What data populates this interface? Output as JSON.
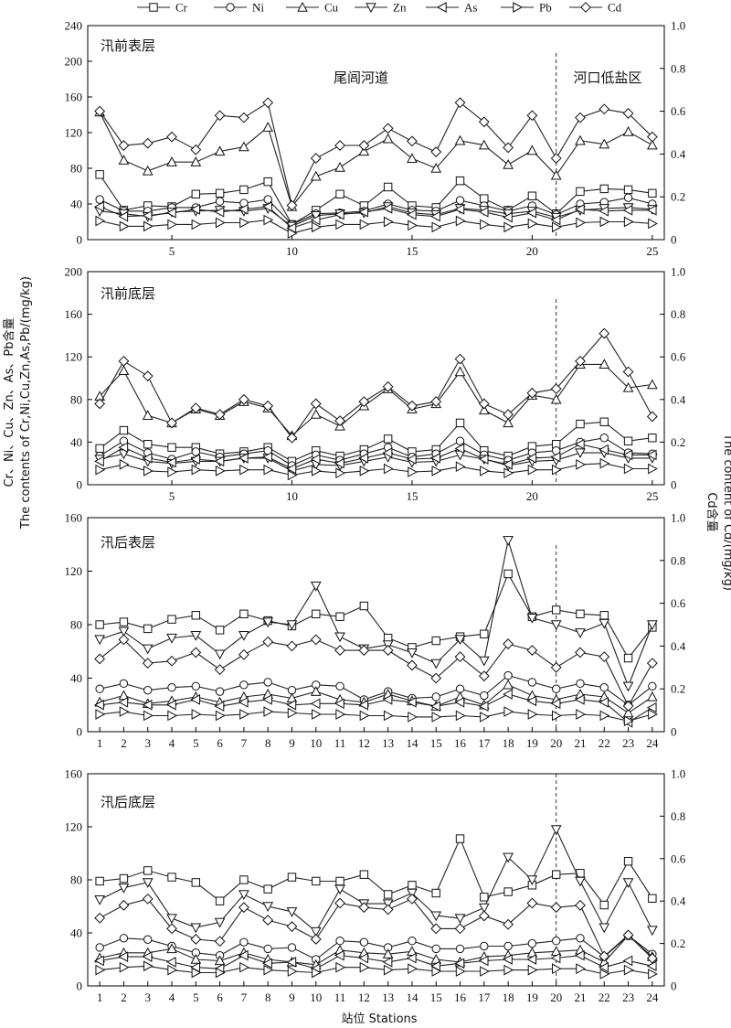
{
  "legend": [
    "Cr",
    "Ni",
    "Cu",
    "Zn",
    "As",
    "Pb",
    "Cd"
  ],
  "series_markers": [
    "square",
    "circle",
    "triangle-up",
    "triangle-down",
    "triangle-left",
    "triangle-right",
    "diamond"
  ],
  "y_left_label": "Cr、Ni、Cu、Zn、As、Pb含量",
  "y_left_label_en": "The contents of Cr,Ni,Cu,Zn,As,Pb/(mg/kg)",
  "y_right_label": "Cd含量",
  "y_right_label_en": "The content of Cd/(mg/kg)",
  "x_label": "站位 Stations",
  "chart_data": [
    {
      "type": "line",
      "title": "汛前表层",
      "regions": [
        {
          "label": "尾闾河道"
        },
        {
          "label": "河口低盐区"
        }
      ],
      "divider_x": 21,
      "xlim": [
        1.5,
        25.5
      ],
      "xticks": [
        5,
        10,
        15,
        20,
        25
      ],
      "ylim_left": [
        0,
        240
      ],
      "yticks_left": [
        0,
        40,
        80,
        120,
        160,
        200,
        240
      ],
      "ylim_right": [
        0,
        1.0
      ],
      "yticks_right": [
        "0",
        "0.2",
        "0.4",
        "0.6",
        "0.8",
        "1.0"
      ],
      "x": [
        2,
        3,
        4,
        5,
        6,
        7,
        8,
        9,
        10,
        11,
        12,
        13,
        14,
        15,
        16,
        17,
        18,
        19,
        20,
        21,
        22,
        23,
        24,
        25
      ],
      "series": [
        {
          "name": "Cr",
          "axis": "left",
          "values": [
            73,
            33,
            38,
            37,
            51,
            52,
            56,
            65,
            17,
            33,
            51,
            38,
            59,
            38,
            36,
            66,
            46,
            33,
            49,
            29,
            54,
            57,
            56,
            52
          ]
        },
        {
          "name": "Ni",
          "axis": "left",
          "values": [
            45,
            32,
            32,
            36,
            36,
            43,
            41,
            45,
            17,
            29,
            30,
            32,
            40,
            33,
            32,
            44,
            38,
            32,
            38,
            28,
            40,
            42,
            47,
            40
          ]
        },
        {
          "name": "Cu",
          "axis": "left",
          "values": [
            143,
            89,
            77,
            87,
            87,
            99,
            104,
            126,
            37,
            71,
            81,
            99,
            113,
            91,
            80,
            111,
            106,
            84,
            100,
            72,
            111,
            107,
            121,
            106
          ]
        },
        {
          "name": "Zn",
          "axis": "left",
          "values": [
            32,
            29,
            26,
            31,
            32,
            33,
            32,
            35,
            15,
            27,
            29,
            30,
            37,
            30,
            28,
            35,
            33,
            29,
            32,
            25,
            33,
            35,
            36,
            34
          ]
        },
        {
          "name": "As",
          "axis": "left",
          "values": [
            37,
            26,
            27,
            30,
            34,
            31,
            34,
            37,
            13,
            22,
            28,
            31,
            35,
            28,
            26,
            34,
            31,
            25,
            30,
            22,
            34,
            32,
            33,
            33
          ]
        },
        {
          "name": "Pb",
          "axis": "left",
          "values": [
            21,
            15,
            15,
            17,
            17,
            19,
            19,
            22,
            7,
            14,
            17,
            17,
            20,
            16,
            14,
            21,
            17,
            14,
            18,
            14,
            19,
            20,
            20,
            18
          ]
        },
        {
          "name": "Cd",
          "axis": "right",
          "values": [
            0.6,
            0.44,
            0.45,
            0.48,
            0.42,
            0.58,
            0.57,
            0.64,
            0.16,
            0.38,
            0.44,
            0.44,
            0.52,
            0.46,
            0.41,
            0.64,
            0.55,
            0.43,
            0.58,
            0.38,
            0.57,
            0.61,
            0.59,
            0.48
          ]
        }
      ]
    },
    {
      "type": "line",
      "title": "汛前底层",
      "divider_x": 21,
      "xlim": [
        1.5,
        25.5
      ],
      "xticks": [
        5,
        10,
        15,
        20,
        25
      ],
      "ylim_left": [
        0,
        200
      ],
      "yticks_left": [
        0,
        40,
        80,
        120,
        160,
        200
      ],
      "ylim_right": [
        0,
        1.0
      ],
      "yticks_right": [
        "0",
        "0.2",
        "0.4",
        "0.6",
        "0.8",
        "1.0"
      ],
      "x": [
        2,
        3,
        4,
        5,
        6,
        7,
        8,
        9,
        10,
        11,
        12,
        13,
        14,
        15,
        16,
        17,
        18,
        19,
        20,
        21,
        22,
        23,
        24,
        25
      ],
      "series": [
        {
          "name": "Cr",
          "axis": "left",
          "values": [
            34,
            51,
            38,
            35,
            35,
            29,
            31,
            35,
            22,
            32,
            27,
            33,
            43,
            31,
            33,
            58,
            32,
            27,
            36,
            38,
            57,
            59,
            41,
            44
          ]
        },
        {
          "name": "Ni",
          "axis": "left",
          "values": [
            27,
            41,
            30,
            24,
            31,
            26,
            29,
            32,
            18,
            28,
            23,
            29,
            35,
            26,
            29,
            41,
            28,
            23,
            30,
            32,
            40,
            44,
            30,
            29
          ]
        },
        {
          "name": "Cu",
          "axis": "left",
          "values": [
            83,
            107,
            65,
            58,
            71,
            65,
            78,
            72,
            46,
            66,
            55,
            74,
            90,
            71,
            76,
            106,
            70,
            58,
            84,
            80,
            113,
            113,
            91,
            94
          ]
        },
        {
          "name": "Zn",
          "axis": "left",
          "values": [
            24,
            29,
            22,
            20,
            22,
            22,
            25,
            25,
            13,
            19,
            18,
            22,
            26,
            21,
            22,
            28,
            24,
            18,
            22,
            23,
            30,
            30,
            25,
            25
          ]
        },
        {
          "name": "As",
          "axis": "left",
          "values": [
            22,
            35,
            25,
            21,
            24,
            22,
            25,
            26,
            15,
            24,
            20,
            25,
            30,
            24,
            25,
            34,
            24,
            19,
            25,
            26,
            38,
            33,
            28,
            28
          ]
        },
        {
          "name": "Pb",
          "axis": "left",
          "values": [
            14,
            19,
            13,
            12,
            14,
            13,
            14,
            14,
            9,
            13,
            11,
            13,
            15,
            12,
            13,
            17,
            13,
            11,
            14,
            14,
            19,
            20,
            15,
            15
          ]
        },
        {
          "name": "Cd",
          "axis": "right",
          "values": [
            0.38,
            0.58,
            0.51,
            0.29,
            0.36,
            0.33,
            0.4,
            0.37,
            0.22,
            0.38,
            0.3,
            0.39,
            0.46,
            0.37,
            0.39,
            0.59,
            0.38,
            0.33,
            0.43,
            0.45,
            0.58,
            0.71,
            0.53,
            0.32
          ]
        }
      ]
    },
    {
      "type": "line",
      "title": "汛后表层",
      "divider_x": 20,
      "xlim": [
        0.5,
        24.5
      ],
      "xticks": [
        1,
        2,
        3,
        4,
        5,
        6,
        7,
        8,
        9,
        10,
        11,
        12,
        13,
        14,
        15,
        16,
        17,
        18,
        19,
        20,
        21,
        22,
        23,
        24
      ],
      "ylim_left": [
        0,
        160
      ],
      "yticks_left": [
        0,
        40,
        80,
        120,
        160
      ],
      "ylim_right": [
        0,
        1.0
      ],
      "yticks_right": [
        "0",
        "0.2",
        "0.4",
        "0.6",
        "0.8",
        "1.0"
      ],
      "x": [
        1,
        2,
        3,
        4,
        5,
        6,
        7,
        8,
        9,
        10,
        11,
        12,
        13,
        14,
        15,
        16,
        17,
        18,
        19,
        20,
        21,
        22,
        23,
        24
      ],
      "series": [
        {
          "name": "Cr",
          "axis": "left",
          "values": [
            80,
            82,
            77,
            84,
            87,
            76,
            88,
            83,
            79,
            88,
            86,
            94,
            70,
            63,
            68,
            71,
            73,
            118,
            86,
            91,
            88,
            87,
            55,
            78
          ]
        },
        {
          "name": "Ni",
          "axis": "left",
          "values": [
            32,
            36,
            31,
            33,
            34,
            30,
            35,
            37,
            31,
            35,
            34,
            24,
            30,
            25,
            26,
            32,
            27,
            42,
            37,
            32,
            36,
            33,
            20,
            34
          ]
        },
        {
          "name": "Cu",
          "axis": "left",
          "values": [
            22,
            27,
            21,
            23,
            26,
            22,
            26,
            28,
            25,
            30,
            24,
            22,
            28,
            23,
            19,
            26,
            20,
            35,
            27,
            24,
            28,
            26,
            14,
            26
          ]
        },
        {
          "name": "Zn",
          "axis": "left",
          "values": [
            69,
            75,
            62,
            70,
            72,
            58,
            72,
            82,
            80,
            109,
            71,
            62,
            65,
            59,
            51,
            69,
            53,
            143,
            85,
            80,
            74,
            81,
            34,
            80
          ]
        },
        {
          "name": "As",
          "axis": "left",
          "values": [
            20,
            22,
            20,
            20,
            24,
            19,
            22,
            24,
            20,
            21,
            21,
            20,
            24,
            22,
            19,
            22,
            19,
            28,
            23,
            21,
            24,
            22,
            7,
            18
          ]
        },
        {
          "name": "Pb",
          "axis": "left",
          "values": [
            13,
            15,
            12,
            12,
            13,
            12,
            13,
            15,
            14,
            13,
            13,
            12,
            12,
            11,
            11,
            12,
            11,
            15,
            13,
            12,
            13,
            12,
            8,
            13
          ]
        },
        {
          "name": "Cd",
          "axis": "right",
          "values": [
            0.34,
            0.43,
            0.32,
            0.33,
            0.37,
            0.29,
            0.36,
            0.42,
            0.4,
            0.43,
            0.38,
            0.38,
            0.38,
            0.31,
            0.25,
            0.35,
            0.26,
            0.41,
            0.38,
            0.3,
            0.37,
            0.35,
            0.12,
            0.32
          ]
        }
      ]
    },
    {
      "type": "line",
      "title": "汛后底层",
      "divider_x": 20,
      "xlim": [
        0.5,
        24.5
      ],
      "xticks": [
        1,
        2,
        3,
        4,
        5,
        6,
        7,
        8,
        9,
        10,
        11,
        12,
        13,
        14,
        15,
        16,
        17,
        18,
        19,
        20,
        21,
        22,
        23,
        24
      ],
      "ylim_left": [
        0,
        160
      ],
      "yticks_left": [
        0,
        40,
        80,
        120,
        160
      ],
      "ylim_right": [
        0,
        1.0
      ],
      "yticks_right": [
        "0",
        "0.2",
        "0.4",
        "0.6",
        "0.8",
        "1.0"
      ],
      "x": [
        1,
        2,
        3,
        4,
        5,
        6,
        7,
        8,
        9,
        10,
        11,
        12,
        13,
        14,
        15,
        16,
        17,
        18,
        19,
        20,
        21,
        22,
        23,
        24
      ],
      "series": [
        {
          "name": "Cr",
          "axis": "left",
          "values": [
            79,
            81,
            87,
            82,
            78,
            64,
            80,
            73,
            82,
            79,
            79,
            84,
            69,
            76,
            70,
            111,
            67,
            71,
            76,
            84,
            85,
            61,
            94,
            66
          ]
        },
        {
          "name": "Ni",
          "axis": "left",
          "values": [
            29,
            36,
            35,
            30,
            25,
            23,
            33,
            28,
            29,
            20,
            34,
            33,
            29,
            34,
            28,
            28,
            30,
            30,
            32,
            34,
            36,
            22,
            38,
            24
          ]
        },
        {
          "name": "Cu",
          "axis": "left",
          "values": [
            21,
            25,
            25,
            28,
            20,
            19,
            25,
            20,
            18,
            16,
            27,
            25,
            24,
            26,
            20,
            18,
            22,
            23,
            25,
            26,
            27,
            18,
            38,
            22
          ]
        },
        {
          "name": "Zn",
          "axis": "left",
          "values": [
            65,
            74,
            78,
            51,
            44,
            48,
            69,
            60,
            56,
            41,
            73,
            62,
            62,
            70,
            53,
            51,
            59,
            97,
            80,
            118,
            79,
            44,
            78,
            42
          ]
        },
        {
          "name": "As",
          "axis": "left",
          "values": [
            19,
            22,
            22,
            18,
            14,
            13,
            23,
            17,
            18,
            13,
            23,
            21,
            18,
            21,
            15,
            17,
            19,
            20,
            20,
            21,
            23,
            14,
            19,
            15
          ]
        },
        {
          "name": "Pb",
          "axis": "left",
          "values": [
            12,
            14,
            15,
            12,
            10,
            10,
            14,
            12,
            11,
            10,
            14,
            14,
            12,
            13,
            11,
            11,
            11,
            12,
            12,
            13,
            13,
            9,
            12,
            9
          ]
        },
        {
          "name": "Cd",
          "axis": "right",
          "values": [
            0.32,
            0.38,
            0.41,
            0.27,
            0.22,
            0.21,
            0.37,
            0.31,
            0.28,
            0.22,
            0.39,
            0.37,
            0.36,
            0.41,
            0.27,
            0.27,
            0.33,
            0.29,
            0.39,
            0.37,
            0.38,
            0.14,
            0.24,
            0.13
          ]
        }
      ]
    }
  ]
}
